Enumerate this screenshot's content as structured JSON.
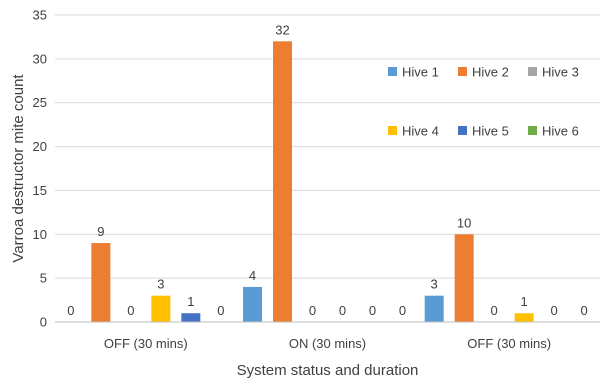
{
  "chart_data": {
    "type": "bar",
    "title": "",
    "xlabel": "System status and duration",
    "ylabel": "Varroa destructor mite count",
    "ylim": [
      0,
      35
    ],
    "yticks": [
      0,
      5,
      10,
      15,
      20,
      25,
      30,
      35
    ],
    "grid": "horizontal",
    "legend_position": "right",
    "categories": [
      "OFF (30 mins)",
      "ON (30 mins)",
      "OFF (30 mins)"
    ],
    "series": [
      {
        "name": "Hive 1",
        "color": "#5b9bd5",
        "values": [
          0,
          4,
          3
        ]
      },
      {
        "name": "Hive 2",
        "color": "#ed7d31",
        "values": [
          9,
          32,
          10
        ]
      },
      {
        "name": "Hive 3",
        "color": "#a5a5a5",
        "values": [
          0,
          0,
          0
        ]
      },
      {
        "name": "Hive 4",
        "color": "#ffc000",
        "values": [
          3,
          0,
          1
        ]
      },
      {
        "name": "Hive 5",
        "color": "#4472c4",
        "values": [
          1,
          0,
          0
        ]
      },
      {
        "name": "Hive 6",
        "color": "#70ad47",
        "values": [
          0,
          0,
          0
        ]
      }
    ]
  }
}
